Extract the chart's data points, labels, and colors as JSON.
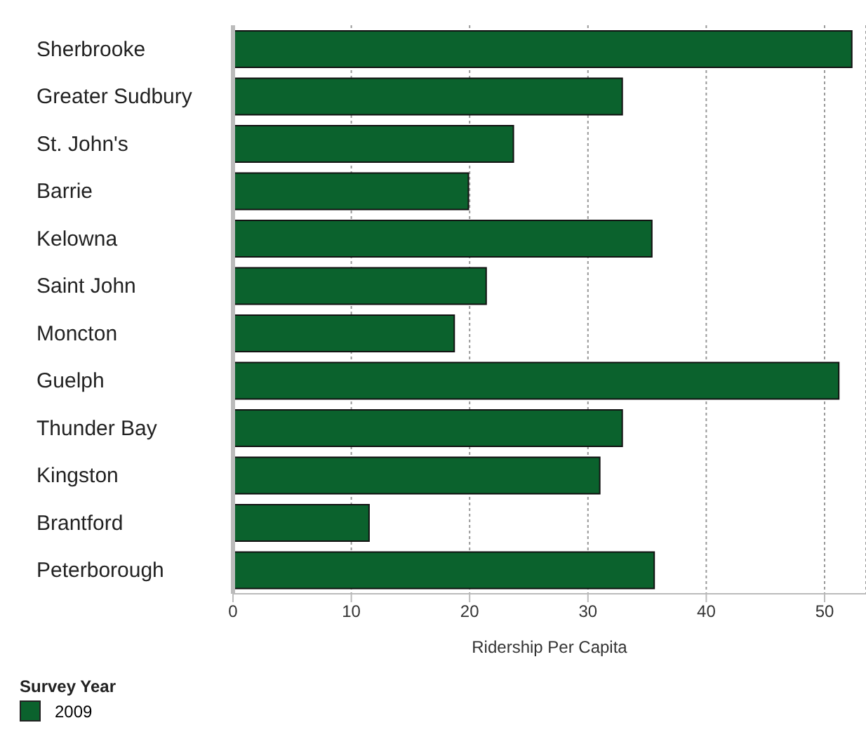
{
  "chart_data": {
    "type": "bar",
    "orientation": "horizontal",
    "xlabel": "Ridership Per Capita",
    "legend_title": "Survey Year",
    "categories": [
      "Sherbrooke",
      "Greater Sudbury",
      "St. John's",
      "Barrie",
      "Kelowna",
      "Saint John",
      "Moncton",
      "Guelph",
      "Thunder Bay",
      "Kingston",
      "Brantford",
      "Peterborough"
    ],
    "series": [
      {
        "name": "2009",
        "color": "#0b622d",
        "values": [
          52.3,
          32.9,
          23.7,
          19.9,
          35.4,
          21.4,
          18.7,
          51.2,
          32.9,
          31.0,
          11.5,
          35.6
        ]
      }
    ],
    "xlim": [
      0,
      53.5
    ],
    "xticks": [
      0,
      10,
      20,
      30,
      40,
      50
    ],
    "grid": "x",
    "legend": "bottom left"
  }
}
